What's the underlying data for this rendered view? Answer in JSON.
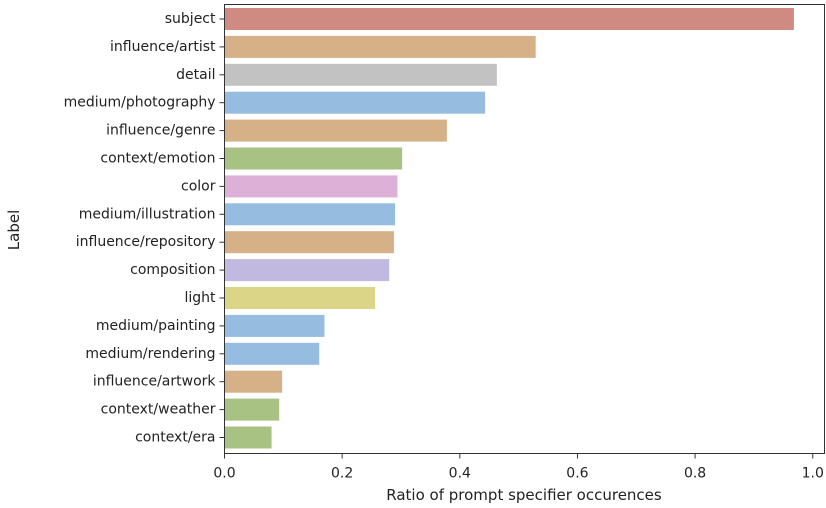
{
  "chart_data": {
    "type": "bar",
    "orientation": "horizontal",
    "xlabel": "Ratio of prompt specifier occurences",
    "ylabel": "Label",
    "xlim": [
      0,
      1.02
    ],
    "xticks": [
      "0.0",
      "0.2",
      "0.4",
      "0.6",
      "0.8",
      "1.0"
    ],
    "grid": false,
    "categories": [
      "subject",
      "influence/artist",
      "detail",
      "medium/photography",
      "influence/genre",
      "context/emotion",
      "color",
      "medium/illustration",
      "influence/repository",
      "composition",
      "light",
      "medium/painting",
      "medium/rendering",
      "influence/artwork",
      "context/weather",
      "context/era"
    ],
    "values": [
      0.968,
      0.529,
      0.463,
      0.443,
      0.378,
      0.302,
      0.294,
      0.29,
      0.288,
      0.28,
      0.256,
      0.17,
      0.161,
      0.098,
      0.093,
      0.08
    ],
    "colors": [
      "#cf8b81",
      "#d6b087",
      "#c2c2c2",
      "#96bcdf",
      "#d6b087",
      "#a8c283",
      "#ddb0d8",
      "#96bcdf",
      "#d6b087",
      "#c1b9e0",
      "#dbd687",
      "#96bcdf",
      "#96bcdf",
      "#d6b087",
      "#a8c283",
      "#a8c283"
    ]
  }
}
